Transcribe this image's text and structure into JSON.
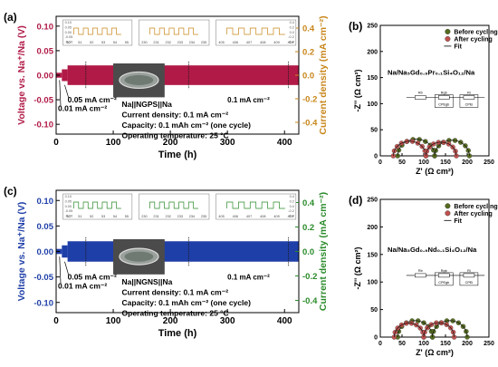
{
  "chart_data": [
    {
      "panel": "(a)",
      "type": "line",
      "xlabel": "Time (h)",
      "ylabel_left": "Voltage vs. Na⁺/Na (V)",
      "ylabel_right": "Current density (mA cm⁻²)",
      "xlim": [
        0,
        425
      ],
      "ylim_left": [
        -0.12,
        0.12
      ],
      "ylim_right": [
        -0.5,
        0.5
      ],
      "x_ticks": [
        "0",
        "100",
        "200",
        "300",
        "400"
      ],
      "y_ticks_left": [
        "0.10",
        "0.05",
        "0.00",
        "-0.05",
        "-0.10"
      ],
      "y_ticks_right": [
        "0.4",
        "0.2",
        "0.0",
        "-0.2",
        "-0.4"
      ],
      "annotations": [
        "0.05 mA cm⁻²",
        "0.01 mA cm⁻²",
        "0.1 mA cm⁻²"
      ],
      "cell_info": [
        "Na||NGPS||Na",
        "Current density: 0.1 mA cm⁻²",
        "Capacity: 0.1 mAh cm⁻² (one cycle)",
        "Operating temperature: 25 °C"
      ],
      "inset_ticks": [
        [
          "50",
          "51",
          "52",
          "53",
          "54",
          "55"
        ],
        [
          "230",
          "231",
          "232",
          "233",
          "234",
          "235"
        ],
        [
          "405",
          "406",
          "407",
          "408",
          "409",
          "410"
        ]
      ],
      "inset_y_ticks": [
        "0.10",
        "0.05",
        "0.00",
        "-0.05",
        "-0.10"
      ],
      "inset_y_ticks_right": [
        "0.4",
        "0.2",
        "0.0",
        "-0.2",
        "-0.4"
      ],
      "segments": [
        {
          "x_start": 0,
          "x_end": 10,
          "voltage_amplitude": 0.005
        },
        {
          "x_start": 10,
          "x_end": 20,
          "voltage_amplitude": 0.012
        },
        {
          "x_start": 20,
          "x_end": 425,
          "voltage_amplitude": 0.02
        }
      ]
    },
    {
      "panel": "(b)",
      "type": "scatter",
      "xlabel": "Z' (Ω cm²)",
      "ylabel": "-Z'' (Ω cm²)",
      "xlim": [
        0,
        250
      ],
      "ylim": [
        0,
        250
      ],
      "x_ticks": [
        "0",
        "50",
        "100",
        "150",
        "200",
        "250"
      ],
      "y_ticks": [
        "0",
        "50",
        "100",
        "150",
        "200",
        "250"
      ],
      "legend": [
        "Before cycling",
        "After cycling",
        "Fit"
      ],
      "legend_position": "top-right",
      "sample_label": "Na/Na₅Gd₀.₉Pr₀.₁Si₄O₁₂/Na",
      "circuit_labels": [
        "Rb",
        "Rgb",
        "CPEgb",
        "Ri",
        "CPEi"
      ],
      "series": [
        {
          "name": "Before cycling",
          "color": "#556b1e",
          "arcs": [
            [
              40,
              125
            ],
            [
              125,
              205
            ]
          ]
        },
        {
          "name": "After cycling",
          "color": "#c0504d",
          "arcs": [
            [
              30,
              105
            ],
            [
              105,
              175
            ]
          ]
        }
      ]
    },
    {
      "panel": "(c)",
      "type": "line",
      "xlabel": "Time (h)",
      "ylabel_left": "Voltage vs. Na⁺/Na (V)",
      "ylabel_right": "Current density (mA cm⁻²)",
      "xlim": [
        0,
        425
      ],
      "ylim_left": [
        -0.12,
        0.12
      ],
      "ylim_right": [
        -0.5,
        0.5
      ],
      "x_ticks": [
        "0",
        "100",
        "200",
        "300",
        "400"
      ],
      "y_ticks_left": [
        "0.10",
        "0.05",
        "0.00",
        "-0.05",
        "-0.10"
      ],
      "y_ticks_right": [
        "0.4",
        "0.2",
        "0.0",
        "-0.2",
        "-0.4"
      ],
      "annotations": [
        "0.05 mA cm⁻²",
        "0.01 mA cm⁻²",
        "0.1 mA cm⁻²"
      ],
      "cell_info": [
        "Na||NGNS||Na",
        "Current density: 0.1 mA cm⁻²",
        "Capacity: 0.1 mAh cm⁻² (one cycle)",
        "Operating temperature: 25 °C"
      ],
      "inset_ticks": [
        [
          "50",
          "51",
          "52",
          "53",
          "54",
          "55"
        ],
        [
          "230",
          "231",
          "232",
          "233",
          "234",
          "235"
        ],
        [
          "405",
          "406",
          "407",
          "408",
          "409",
          "410"
        ]
      ],
      "inset_y_ticks": [
        "0.10",
        "0.05",
        "0.00",
        "-0.05",
        "-0.10"
      ],
      "inset_y_ticks_right": [
        "0.4",
        "0.2",
        "0.0",
        "-0.2",
        "-0.4"
      ],
      "segments": [
        {
          "x_start": 0,
          "x_end": 10,
          "voltage_amplitude": 0.005
        },
        {
          "x_start": 10,
          "x_end": 20,
          "voltage_amplitude": 0.012
        },
        {
          "x_start": 20,
          "x_end": 425,
          "voltage_amplitude": 0.02
        }
      ]
    },
    {
      "panel": "(d)",
      "type": "scatter",
      "xlabel": "Z' (Ω cm²)",
      "ylabel": "-Z'' (Ω cm²)",
      "xlim": [
        0,
        250
      ],
      "ylim": [
        0,
        250
      ],
      "x_ticks": [
        "0",
        "50",
        "100",
        "150",
        "200",
        "250"
      ],
      "y_ticks": [
        "0",
        "50",
        "100",
        "150",
        "200",
        "250"
      ],
      "legend": [
        "Before cycling",
        "After cycling",
        "Fit"
      ],
      "legend_position": "top-right",
      "sample_label": "Na/Na₅Gd₀.₉Nd₀.₁Si₄O₁₂/Na",
      "circuit_labels": [
        "Rb",
        "Rgb",
        "CPEgb",
        "Ri",
        "CPEi"
      ],
      "series": [
        {
          "name": "Before cycling",
          "color": "#556b1e",
          "arcs": [
            [
              40,
              120
            ],
            [
              120,
              200
            ]
          ]
        },
        {
          "name": "After cycling",
          "color": "#c0504d",
          "arcs": [
            [
              32,
              100
            ],
            [
              100,
              170
            ]
          ]
        }
      ]
    }
  ]
}
